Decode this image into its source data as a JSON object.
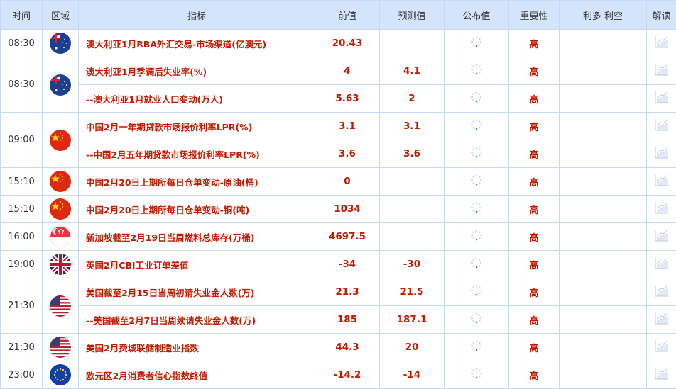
{
  "headers": {
    "time": "时间",
    "region": "区域",
    "indicator": "指标",
    "previous": "前值",
    "forecast": "预测值",
    "actual": "公布值",
    "importance": "重要性",
    "impact": "利多 利空",
    "analysis": "解读"
  },
  "colors": {
    "header_bg": "#d4e4fc",
    "border": "#c6d9f5",
    "value_red": "#c41a00"
  },
  "groups": [
    {
      "time": "08:30",
      "flag": "australia",
      "rows": [
        {
          "indicator": "澳大利亚1月RBA外汇交易-市场渠道(亿澳元)",
          "previous": "20.43",
          "forecast": "",
          "importance": "高"
        }
      ]
    },
    {
      "time": "08:30",
      "flag": "australia",
      "rows": [
        {
          "indicator": "澳大利亚1月季调后失业率(%)",
          "previous": "4",
          "forecast": "4.1",
          "importance": "高"
        },
        {
          "indicator": "--澳大利亚1月就业人口变动(万人)",
          "previous": "5.63",
          "forecast": "2",
          "importance": "高"
        }
      ]
    },
    {
      "time": "09:00",
      "flag": "china",
      "rows": [
        {
          "indicator": "中国2月一年期贷款市场报价利率LPR(%)",
          "previous": "3.1",
          "forecast": "3.1",
          "importance": "高"
        },
        {
          "indicator": "--中国2月五年期贷款市场报价利率LPR(%)",
          "previous": "3.6",
          "forecast": "3.6",
          "importance": "高"
        }
      ]
    },
    {
      "time": "15:10",
      "flag": "china",
      "rows": [
        {
          "indicator": "中国2月20日上期所每日仓单变动-原油(桶)",
          "previous": "0",
          "forecast": "",
          "importance": "高"
        }
      ]
    },
    {
      "time": "15:10",
      "flag": "china",
      "rows": [
        {
          "indicator": "中国2月20日上期所每日仓单变动-铜(吨)",
          "previous": "1034",
          "forecast": "",
          "importance": "高"
        }
      ]
    },
    {
      "time": "16:00",
      "flag": "singapore",
      "rows": [
        {
          "indicator": "新加坡截至2月19日当周燃料总库存(万桶)",
          "previous": "4697.5",
          "forecast": "",
          "importance": "高"
        }
      ]
    },
    {
      "time": "19:00",
      "flag": "uk",
      "rows": [
        {
          "indicator": "英国2月CBI工业订单差值",
          "previous": "-34",
          "forecast": "-30",
          "importance": "高"
        }
      ]
    },
    {
      "time": "21:30",
      "flag": "usa",
      "rows": [
        {
          "indicator": "美国截至2月15日当周初请失业金人数(万)",
          "previous": "21.3",
          "forecast": "21.5",
          "importance": "高"
        },
        {
          "indicator": "--美国截至2月7日当周续请失业金人数(万)",
          "previous": "185",
          "forecast": "187.1",
          "importance": "高"
        }
      ]
    },
    {
      "time": "21:30",
      "flag": "usa",
      "rows": [
        {
          "indicator": "美国2月费城联储制造业指数",
          "previous": "44.3",
          "forecast": "20",
          "importance": "高"
        }
      ]
    },
    {
      "time": "23:00",
      "flag": "eurozone",
      "rows": [
        {
          "indicator": "欧元区2月消费者信心指数终值",
          "previous": "-14.2",
          "forecast": "-14",
          "importance": "高"
        }
      ]
    }
  ]
}
